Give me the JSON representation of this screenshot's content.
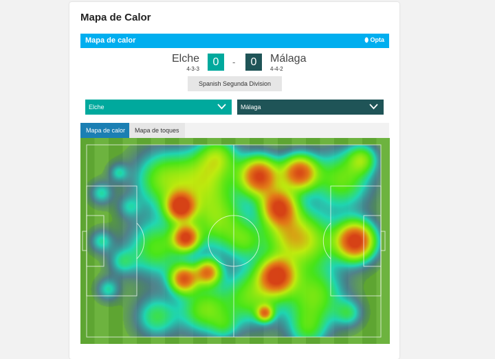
{
  "page_title": "Mapa de Calor",
  "widget": {
    "header": "Mapa de calor",
    "brand": "Opta",
    "brand_color": "#00aeef"
  },
  "match": {
    "home": {
      "name": "Elche",
      "formation": "4-3-3",
      "score": "0",
      "color": "#00a99d"
    },
    "away": {
      "name": "Málaga",
      "formation": "4-4-2",
      "score": "0",
      "color": "#1f5457"
    },
    "separator": "-",
    "competition": "Spanish Segunda Division"
  },
  "selectors": [
    {
      "value": "Elche",
      "icon": "chevron-down-icon"
    },
    {
      "value": "Málaga",
      "icon": "chevron-down-icon"
    }
  ],
  "tabs": [
    {
      "label": "Mapa de calor",
      "active": true
    },
    {
      "label": "Mapa de toques",
      "active": false
    }
  ]
}
